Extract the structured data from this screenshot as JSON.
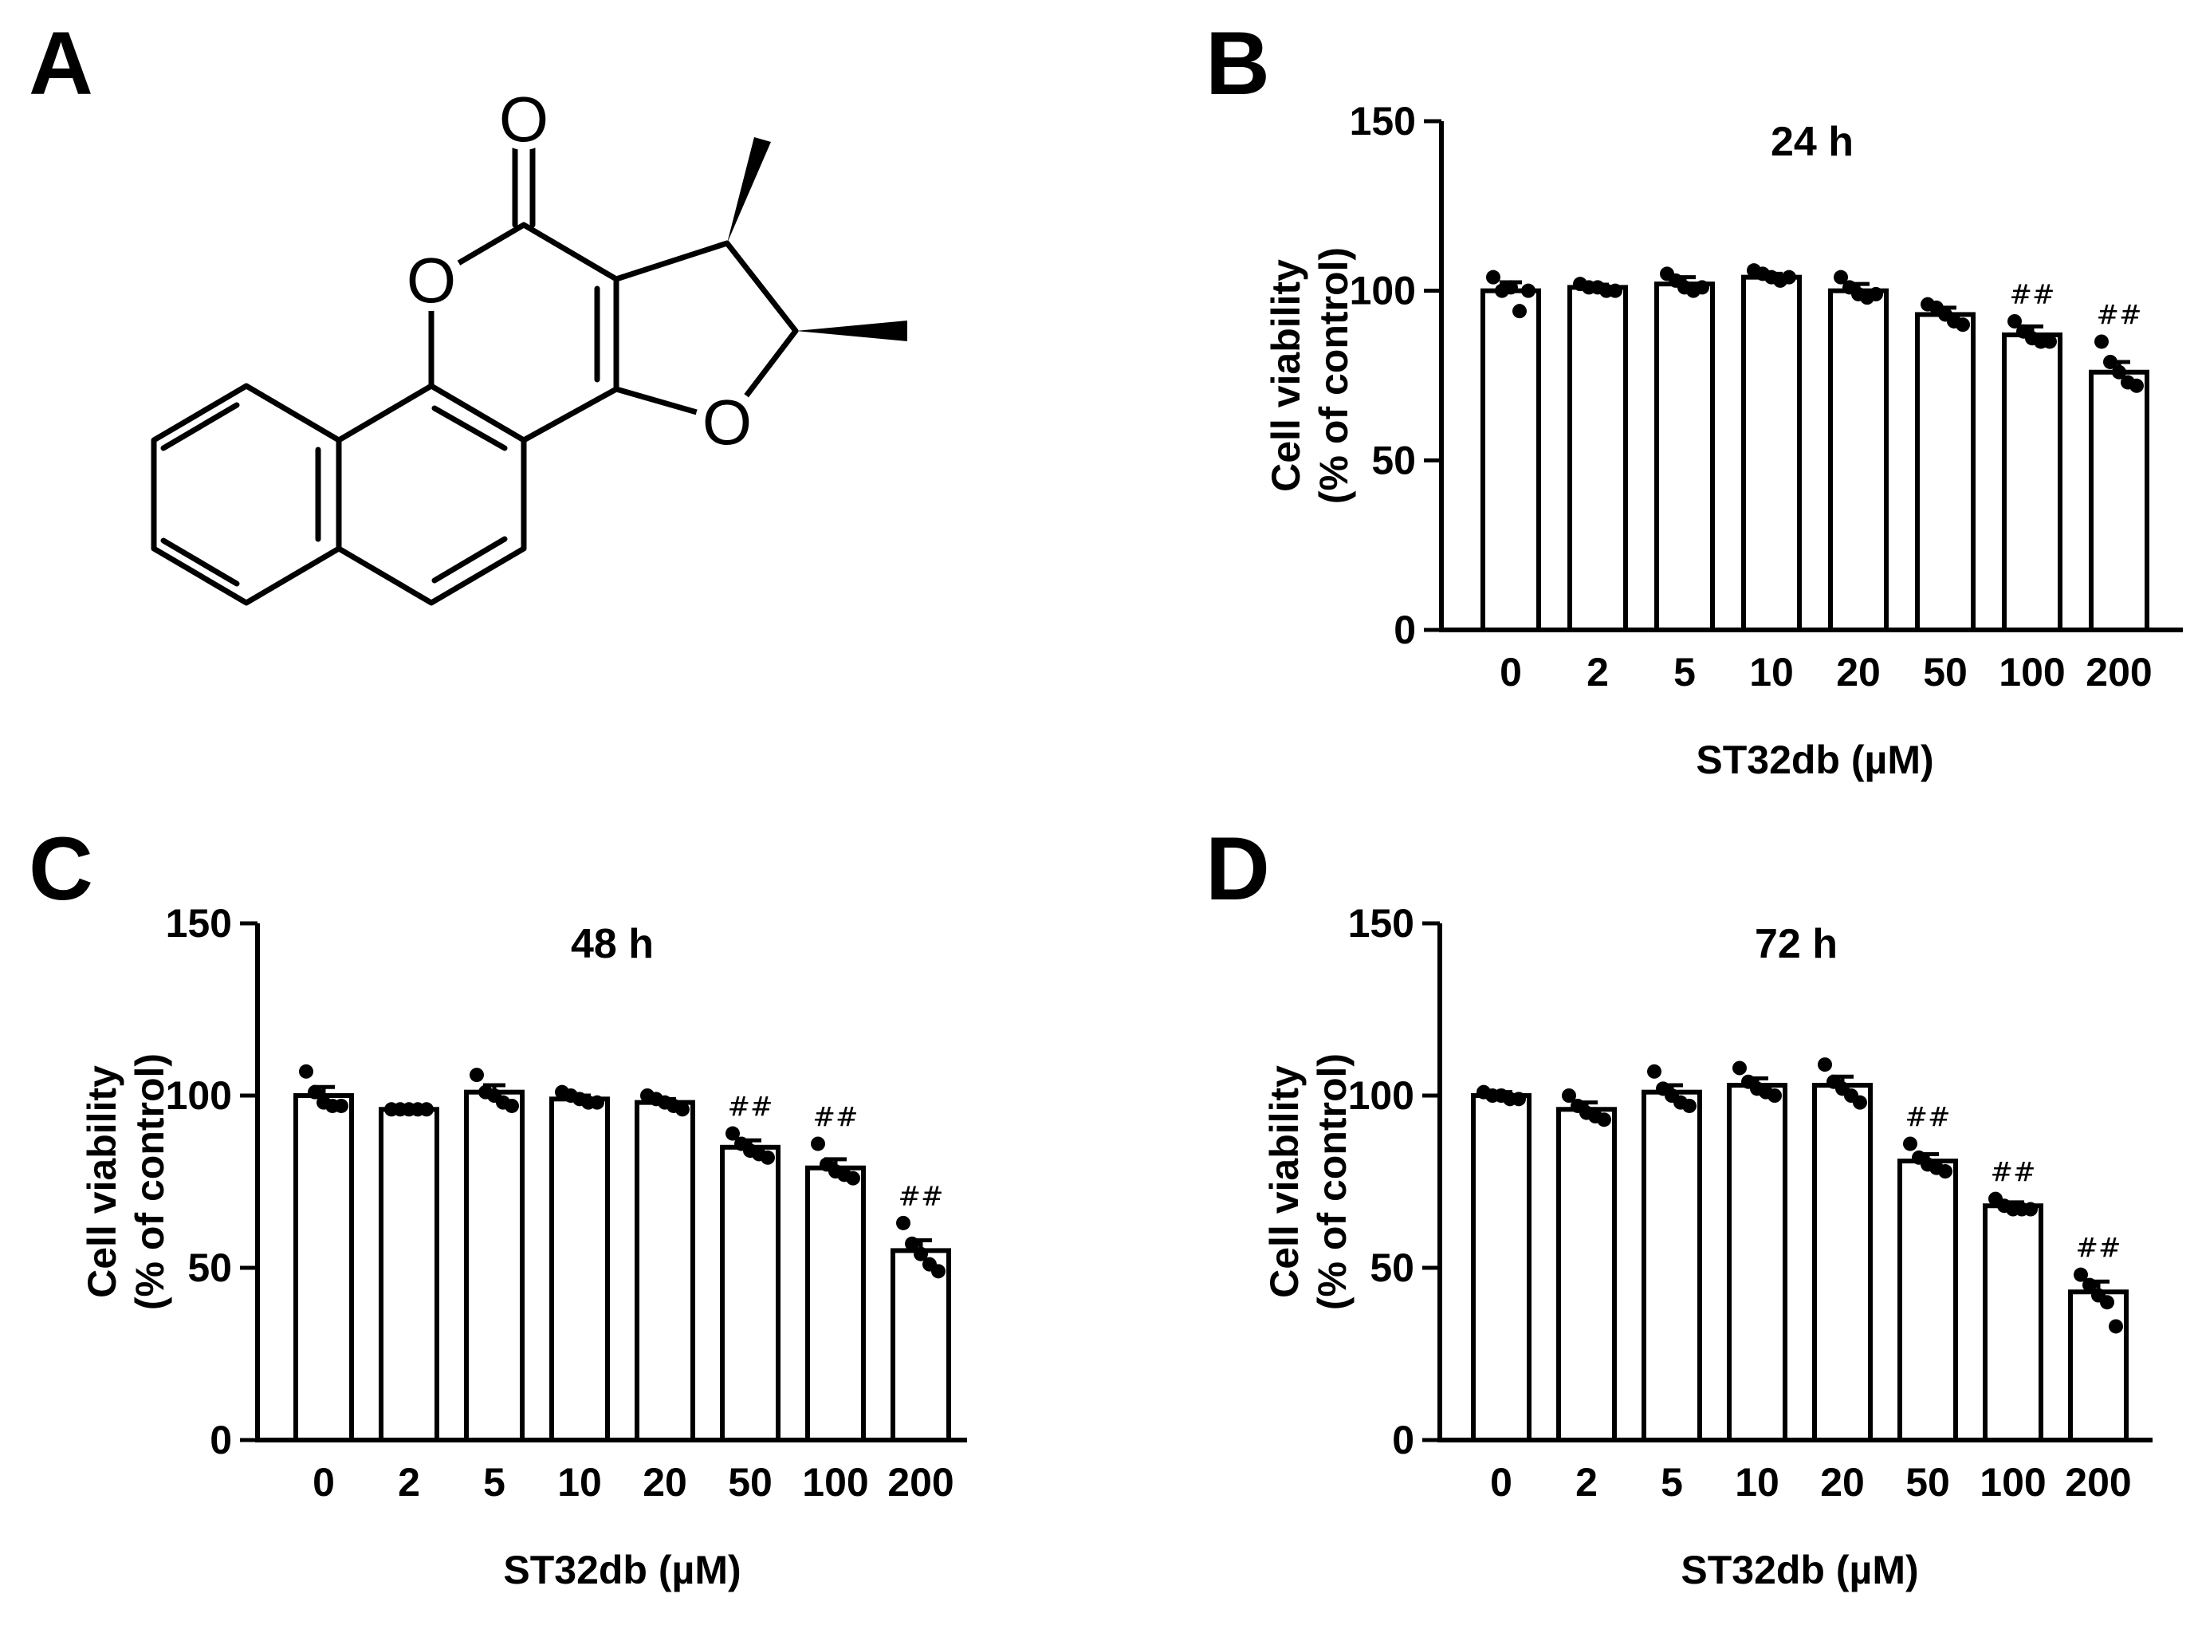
{
  "panels": {
    "a": {
      "letter": "A"
    },
    "b": {
      "letter": "B"
    },
    "c": {
      "letter": "C"
    },
    "d": {
      "letter": "D"
    }
  },
  "molecule": {
    "atoms": {
      "o_carbonyl": "O",
      "o_ring": "O",
      "o_furan": "O"
    }
  },
  "chart_data": [
    {
      "panel": "B",
      "type": "bar",
      "title": "24 h",
      "xlabel": "ST32db (µM)",
      "ylabel": [
        "Cell viability",
        "(% of control)"
      ],
      "ylim": [
        0,
        150
      ],
      "yticks": [
        0,
        50,
        100,
        150
      ],
      "categories": [
        "0",
        "2",
        "5",
        "10",
        "20",
        "50",
        "100",
        "200"
      ],
      "values": [
        100,
        101,
        102,
        104,
        100,
        93,
        87,
        76
      ],
      "sem": [
        2.5,
        0.8,
        2,
        1,
        2,
        2,
        2.5,
        3
      ],
      "points": [
        [
          104,
          100,
          101,
          94,
          100
        ],
        [
          102,
          101,
          101,
          100,
          100
        ],
        [
          105,
          103,
          101,
          100,
          101
        ],
        [
          106,
          105,
          104,
          103,
          104
        ],
        [
          104,
          101,
          99,
          98,
          99
        ],
        [
          96,
          95,
          93,
          91,
          90
        ],
        [
          91,
          88,
          86,
          85,
          85
        ],
        [
          85,
          79,
          76,
          73,
          72
        ]
      ],
      "significance": [
        "",
        "",
        "",
        "",
        "",
        "",
        "##",
        "##"
      ],
      "grid": false,
      "legend": "none"
    },
    {
      "panel": "C",
      "type": "bar",
      "title": "48 h",
      "xlabel": "ST32db (µM)",
      "ylabel": [
        "Cell viability",
        "(% of control)"
      ],
      "ylim": [
        0,
        150
      ],
      "yticks": [
        0,
        50,
        100,
        150
      ],
      "categories": [
        "0",
        "2",
        "5",
        "10",
        "20",
        "50",
        "100",
        "200"
      ],
      "values": [
        100,
        96,
        101,
        99,
        98,
        85,
        79,
        55
      ],
      "sem": [
        2.5,
        0.5,
        2,
        1,
        1,
        2,
        2.5,
        3
      ],
      "points": [
        [
          107,
          101,
          98,
          97,
          97
        ],
        [
          96,
          96,
          96,
          96,
          96
        ],
        [
          106,
          101,
          100,
          98,
          97
        ],
        [
          101,
          100,
          99,
          98,
          98
        ],
        [
          100,
          99,
          98,
          97,
          96
        ],
        [
          89,
          86,
          84,
          83,
          82
        ],
        [
          86,
          80,
          78,
          77,
          76
        ],
        [
          63,
          57,
          54,
          51,
          49
        ]
      ],
      "significance": [
        "",
        "",
        "",
        "",
        "",
        "##",
        "##",
        "##"
      ],
      "grid": false,
      "legend": "none"
    },
    {
      "panel": "D",
      "type": "bar",
      "title": "72 h",
      "xlabel": "ST32db (µM)",
      "ylabel": [
        "Cell viability",
        "(% of control)"
      ],
      "ylim": [
        0,
        150
      ],
      "yticks": [
        0,
        50,
        100,
        150
      ],
      "categories": [
        "0",
        "2",
        "5",
        "10",
        "20",
        "50",
        "100",
        "200"
      ],
      "values": [
        100,
        96,
        101,
        103,
        103,
        81,
        68,
        43
      ],
      "sem": [
        1,
        2,
        2,
        2,
        2.5,
        2,
        1,
        3
      ],
      "points": [
        [
          101,
          100,
          100,
          99,
          99
        ],
        [
          100,
          97,
          95,
          94,
          93
        ],
        [
          107,
          102,
          100,
          98,
          97
        ],
        [
          108,
          104,
          102,
          101,
          100
        ],
        [
          109,
          104,
          102,
          100,
          98
        ],
        [
          86,
          82,
          80,
          79,
          78
        ],
        [
          70,
          68,
          67,
          67,
          67
        ],
        [
          48,
          45,
          42,
          40,
          33
        ]
      ],
      "significance": [
        "",
        "",
        "",
        "",
        "",
        "##",
        "##",
        "##"
      ],
      "grid": false,
      "legend": "none"
    }
  ]
}
